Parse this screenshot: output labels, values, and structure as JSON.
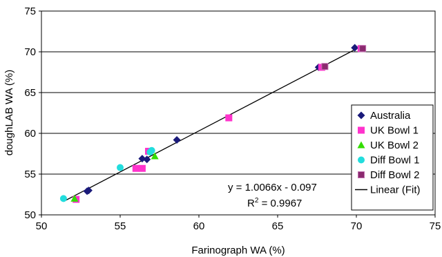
{
  "chart_data": {
    "type": "scatter",
    "xlabel": "Farinograph WA (%)",
    "ylabel": "doughLAB WA (%)",
    "xlim": [
      50,
      75
    ],
    "ylim": [
      50,
      75
    ],
    "xticks": [
      "50",
      "55",
      "60",
      "65",
      "70",
      "75"
    ],
    "yticks": [
      "50",
      "55",
      "60",
      "65",
      "70",
      "75"
    ],
    "grid": "horizontal",
    "legend_placement": "bottom-right",
    "series": [
      {
        "name": "Australia",
        "color": "#1a1a7a",
        "marker": "diamond",
        "points": [
          [
            52.9,
            52.9
          ],
          [
            53.0,
            53.0
          ],
          [
            56.4,
            56.9
          ],
          [
            56.7,
            56.8
          ],
          [
            58.6,
            59.2
          ],
          [
            67.6,
            68.1
          ],
          [
            69.9,
            70.5
          ]
        ]
      },
      {
        "name": "UK Bowl 1",
        "color": "#ff33cc",
        "marker": "square",
        "points": [
          [
            52.2,
            51.9
          ],
          [
            56.0,
            55.7
          ],
          [
            56.4,
            55.7
          ],
          [
            56.8,
            57.8
          ],
          [
            61.9,
            61.9
          ],
          [
            67.8,
            68.1
          ],
          [
            70.3,
            70.4
          ]
        ]
      },
      {
        "name": "UK Bowl 2",
        "color": "#33dd00",
        "marker": "triangle",
        "points": [
          [
            52.1,
            52.0
          ],
          [
            57.2,
            57.2
          ]
        ]
      },
      {
        "name": "Diff Bowl 1",
        "color": "#22dddd",
        "marker": "circle",
        "points": [
          [
            51.4,
            52.0
          ],
          [
            55.0,
            55.8
          ],
          [
            56.9,
            57.7
          ],
          [
            57.0,
            57.9
          ]
        ]
      },
      {
        "name": "Diff Bowl 2",
        "color": "#8b2a6f",
        "marker": "square-small",
        "points": [
          [
            68.0,
            68.2
          ],
          [
            70.4,
            70.4
          ]
        ]
      }
    ],
    "fit": {
      "name": "Linear (Fit)",
      "slope": 1.0066,
      "intercept": -0.097,
      "x_range": [
        51.4,
        70.4
      ],
      "color": "#000000"
    },
    "equation": {
      "line1": "y = 1.0066x - 0.097",
      "r2_prefix": "R",
      "r2_sup": "2",
      "r2_suffix": " = 0.9967"
    }
  }
}
